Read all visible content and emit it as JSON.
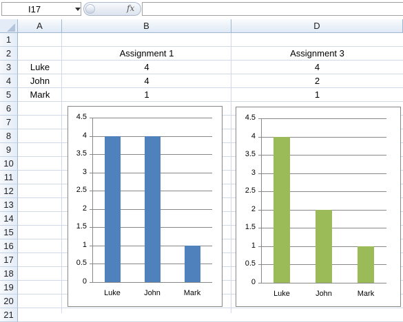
{
  "formula_bar": {
    "name_box": "I17",
    "fx_label": "fx",
    "formula": ""
  },
  "columns": [
    "A",
    "B",
    "D"
  ],
  "rows": [
    "1",
    "2",
    "3",
    "4",
    "5",
    "6",
    "7",
    "8",
    "9",
    "10",
    "11",
    "12",
    "13",
    "14",
    "15",
    "16",
    "17",
    "18",
    "19",
    "20",
    "21"
  ],
  "cells": {
    "B2": "Assignment 1",
    "D2": "Assignment 3",
    "A3": "Luke",
    "B3": "4",
    "D3": "4",
    "A4": "John",
    "B4": "4",
    "D4": "2",
    "A5": "Mark",
    "B5": "1",
    "D5": "1"
  },
  "chart_data": [
    {
      "type": "bar",
      "categories": [
        "Luke",
        "John",
        "Mark"
      ],
      "values": [
        4,
        4,
        1
      ],
      "ylim": [
        0,
        4.5
      ],
      "yticks": [
        "0",
        "0.5",
        "1",
        "1.5",
        "2",
        "2.5",
        "3",
        "3.5",
        "4",
        "4.5"
      ],
      "grid": true,
      "color": "#4f81bd"
    },
    {
      "type": "bar",
      "categories": [
        "Luke",
        "John",
        "Mark"
      ],
      "values": [
        4,
        2,
        1
      ],
      "ylim": [
        0,
        4.5
      ],
      "yticks": [
        "0",
        "0.5",
        "1",
        "1.5",
        "2",
        "2.5",
        "3",
        "3.5",
        "4",
        "4.5"
      ],
      "grid": true,
      "color": "#9bbb59"
    }
  ]
}
